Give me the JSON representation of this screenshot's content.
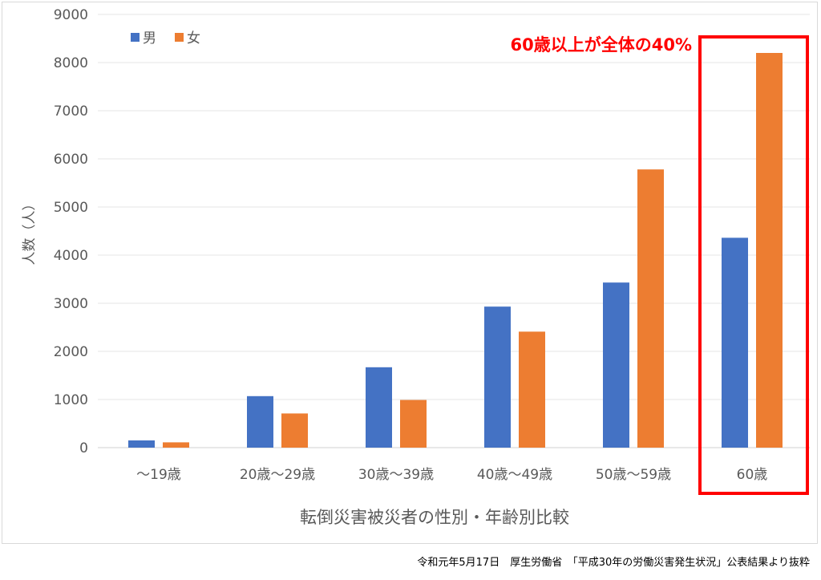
{
  "chart_data": {
    "type": "bar",
    "categories": [
      "～19歳",
      "20歳～29歳",
      "30歳～39歳",
      "40歳～49歳",
      "50歳～59歳",
      "60歳"
    ],
    "series": [
      {
        "name": "男",
        "color": "#4472c4",
        "values": [
          150,
          1070,
          1670,
          2930,
          3430,
          4360
        ]
      },
      {
        "name": "女",
        "color": "#ed7d31",
        "values": [
          110,
          710,
          990,
          2410,
          5780,
          8200
        ]
      }
    ],
    "xlabel": "転倒災害被災者の性別・年齢別比較",
    "ylabel": "人数（人）",
    "ylim": [
      0,
      9000
    ],
    "yticks": [
      0,
      1000,
      2000,
      3000,
      4000,
      5000,
      6000,
      7000,
      8000,
      9000
    ],
    "grid": true,
    "legend_position": "top-left",
    "annotation": {
      "text": "60歳以上が全体の40%",
      "color": "#ff0000",
      "highlight_category": "60歳"
    }
  },
  "source_note": "令和元年5月17日　厚生労働省　「平成30年の労働災害発生状況」公表結果より抜粋"
}
